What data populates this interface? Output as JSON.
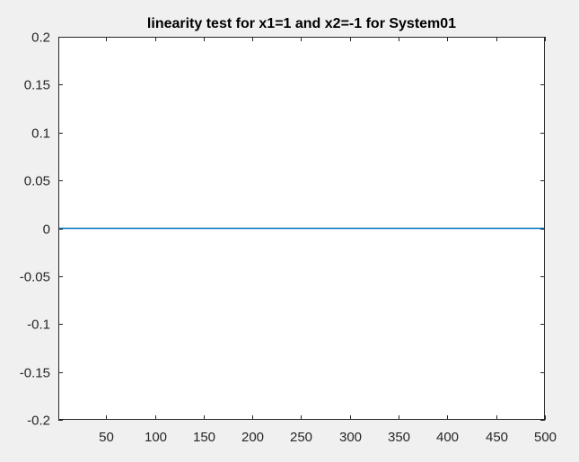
{
  "chart_data": {
    "type": "line",
    "title": "linearity test for x1=1 and x2=-1 for System01",
    "xlabel": "",
    "ylabel": "",
    "xlim": [
      1,
      500
    ],
    "ylim": [
      -0.2,
      0.2
    ],
    "x_ticks": [
      50,
      100,
      150,
      200,
      250,
      300,
      350,
      400,
      450,
      500
    ],
    "x_tick_labels": [
      "50",
      "100",
      "150",
      "200",
      "250",
      "300",
      "350",
      "400",
      "450",
      "500"
    ],
    "y_ticks": [
      0.2,
      0.15,
      0.1,
      0.05,
      0,
      -0.05,
      -0.1,
      -0.15,
      -0.2
    ],
    "y_tick_labels": [
      "0.2",
      "0.15",
      "0.1",
      "0.05",
      "0",
      "-0.05",
      "-0.1",
      "-0.15",
      "-0.2"
    ],
    "grid": false,
    "series": [
      {
        "x": [
          1,
          500
        ],
        "values": [
          0,
          0
        ],
        "color": "#0072bd"
      }
    ]
  },
  "colors": {
    "figure_background": "#f0f0f0",
    "axes_background": "#ffffff",
    "axes_color": "#262626",
    "line_color": "#0072bd"
  }
}
